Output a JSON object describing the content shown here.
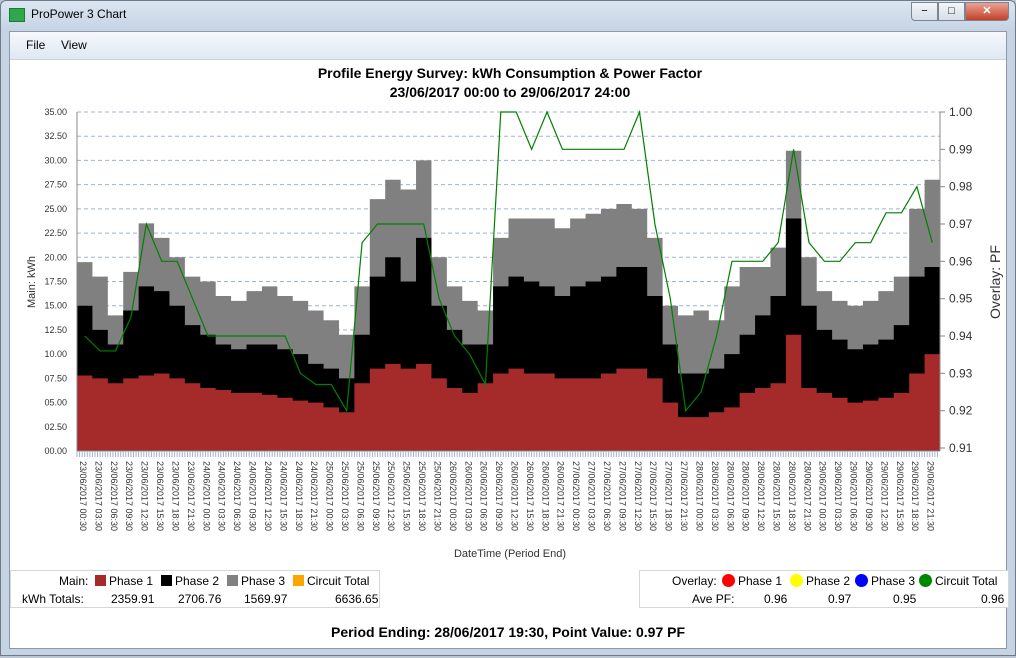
{
  "window": {
    "title": "ProPower 3 Chart",
    "minimize": "−",
    "maximize": "□",
    "close": "✕"
  },
  "menu": [
    {
      "label": "File",
      "key": "F"
    },
    {
      "label": "View",
      "key": "V"
    }
  ],
  "colors": {
    "phase1": "#a52a2a",
    "phase2": "#000000",
    "phase3": "#808080",
    "circuit_total_main": "#ffa500",
    "pf_phase1": "#ff0000",
    "pf_phase2": "#ffff00",
    "pf_phase3": "#0000ff",
    "pf_circuit_total": "#008000"
  },
  "chart_data": {
    "type": "area",
    "title": "Profile Energy Survey: kWh Consumption & Power Factor",
    "subtitle": "23/06/2017 00:00 to 29/06/2017 24:00",
    "xlabel": "DateTime (Period End)",
    "ylabel": "Main: kWh",
    "y2label": "Overlay: PF",
    "stacked": true,
    "grid": true,
    "ylim": [
      0,
      35
    ],
    "yticks": [
      "00.00",
      "02.50",
      "05.00",
      "07.50",
      "10.00",
      "12.50",
      "15.00",
      "17.50",
      "20.00",
      "22.50",
      "25.00",
      "27.50",
      "30.00",
      "32.50",
      "35.00"
    ],
    "y2lim": [
      0.91,
      1.0
    ],
    "y2ticks": [
      "0.91",
      "0.92",
      "0.93",
      "0.94",
      "0.95",
      "0.96",
      "0.97",
      "0.98",
      "0.99",
      "1.00"
    ],
    "x": [
      "23/06/2017 00:30",
      "23/06/2017 03:30",
      "23/06/2017 06:30",
      "23/06/2017 09:30",
      "23/06/2017 12:30",
      "23/06/2017 15:30",
      "23/06/2017 18:30",
      "23/06/2017 21:30",
      "24/06/2017 00:30",
      "24/06/2017 03:30",
      "24/06/2017 06:30",
      "24/06/2017 09:30",
      "24/06/2017 12:30",
      "24/06/2017 15:30",
      "24/06/2017 18:30",
      "24/06/2017 21:30",
      "25/06/2017 00:30",
      "25/06/2017 03:30",
      "25/06/2017 06:30",
      "25/06/2017 09:30",
      "25/06/2017 12:30",
      "25/06/2017 15:30",
      "25/06/2017 18:30",
      "25/06/2017 21:30",
      "26/06/2017 00:30",
      "26/06/2017 03:30",
      "26/06/2017 06:30",
      "26/06/2017 09:30",
      "26/06/2017 12:30",
      "26/06/2017 15:30",
      "26/06/2017 18:30",
      "26/06/2017 21:30",
      "27/06/2017 00:30",
      "27/06/2017 03:30",
      "27/06/2017 06:30",
      "27/06/2017 09:30",
      "27/06/2017 12:30",
      "27/06/2017 15:30",
      "27/06/2017 18:30",
      "27/06/2017 21:30",
      "28/06/2017 00:30",
      "28/06/2017 03:30",
      "28/06/2017 06:30",
      "28/06/2017 09:30",
      "28/06/2017 12:30",
      "28/06/2017 15:30",
      "28/06/2017 18:30",
      "28/06/2017 21:30",
      "29/06/2017 00:30",
      "29/06/2017 03:30",
      "29/06/2017 06:30",
      "29/06/2017 09:30",
      "29/06/2017 12:30",
      "29/06/2017 15:30",
      "29/06/2017 18:30",
      "29/06/2017 21:30"
    ],
    "series": [
      {
        "name": "Phase 1",
        "axis": "main",
        "values": [
          7.8,
          7.5,
          7,
          7.5,
          7.8,
          8,
          7.5,
          7,
          6.5,
          6.3,
          6,
          6,
          5.8,
          5.5,
          5.2,
          5,
          4.5,
          4,
          7,
          8.5,
          9,
          8.5,
          9,
          7.5,
          6.5,
          6,
          7,
          8,
          8.5,
          8,
          8,
          7.5,
          7.5,
          7.5,
          8,
          8.5,
          8.5,
          7.5,
          5,
          3.5,
          3.5,
          4,
          4.5,
          6,
          6.5,
          7,
          12,
          6.5,
          6,
          5.5,
          5,
          5.2,
          5.5,
          6,
          8,
          10
        ]
      },
      {
        "name": "Phase 2",
        "axis": "main",
        "values": [
          7.2,
          5,
          4,
          7,
          9.2,
          8.5,
          7.5,
          6,
          5.5,
          4.7,
          4.5,
          5,
          5.2,
          5,
          4.8,
          4,
          4,
          3.5,
          5,
          9.5,
          11,
          9,
          13,
          7.5,
          6,
          5,
          4,
          9,
          9.5,
          9.5,
          9,
          8.5,
          9.5,
          10,
          10,
          10.5,
          10.5,
          8.5,
          6,
          4.5,
          4.5,
          4.5,
          5.5,
          6,
          7.5,
          9,
          12,
          8.5,
          6.5,
          6,
          5.5,
          5.8,
          6,
          7,
          10,
          9
        ]
      },
      {
        "name": "Phase 3",
        "axis": "main",
        "values": [
          4.5,
          5.5,
          3,
          4,
          6.5,
          5.5,
          5,
          5,
          5.5,
          5,
          5,
          5.5,
          6,
          5.5,
          5.5,
          5.5,
          5,
          4.5,
          5,
          8,
          8,
          9.5,
          8,
          5,
          4.5,
          4.5,
          3.5,
          5,
          6,
          6.5,
          7,
          7,
          7,
          7,
          7,
          6.5,
          6,
          6,
          4,
          6,
          6.5,
          5,
          7,
          7,
          5,
          5,
          7,
          5,
          4,
          4,
          4.5,
          4.5,
          5,
          5,
          7,
          9
        ]
      },
      {
        "name": "Circuit Total",
        "axis": "overlay",
        "values": [
          0.94,
          0.936,
          0.936,
          0.945,
          0.97,
          0.96,
          0.96,
          0.95,
          0.94,
          0.94,
          0.94,
          0.94,
          0.94,
          0.94,
          0.93,
          0.927,
          0.927,
          0.92,
          0.965,
          0.97,
          0.97,
          0.97,
          0.97,
          0.95,
          0.94,
          0.935,
          0.927,
          1.0,
          1.0,
          0.99,
          1.0,
          0.99,
          0.99,
          0.99,
          0.99,
          0.99,
          1.0,
          0.97,
          0.95,
          0.92,
          0.925,
          0.94,
          0.96,
          0.96,
          0.96,
          0.965,
          0.99,
          0.965,
          0.96,
          0.96,
          0.965,
          0.965,
          0.973,
          0.973,
          0.98,
          0.965
        ]
      }
    ]
  },
  "legend_main": {
    "label": "Main:",
    "items": [
      "Phase 1",
      "Phase 2",
      "Phase 3",
      "Circuit Total"
    ],
    "totals_label": "kWh Totals:",
    "totals": [
      "2359.91",
      "2706.76",
      "1569.97",
      "6636.65"
    ]
  },
  "legend_overlay": {
    "label": "Overlay:",
    "items": [
      "Phase 1",
      "Phase 2",
      "Phase 3",
      "Circuit Total"
    ],
    "ave_label": "Ave PF:",
    "ave": [
      "0.96",
      "0.97",
      "0.95",
      "0.96"
    ]
  },
  "status": "Period Ending: 28/06/2017 19:30, Point Value: 0.97 PF"
}
